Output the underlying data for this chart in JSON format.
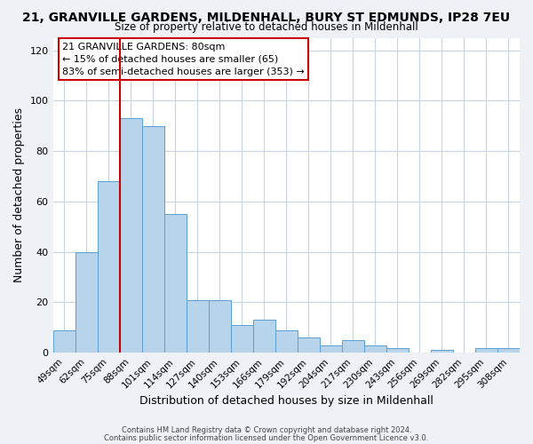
{
  "title": "21, GRANVILLE GARDENS, MILDENHALL, BURY ST EDMUNDS, IP28 7EU",
  "subtitle": "Size of property relative to detached houses in Mildenhall",
  "xlabel": "Distribution of detached houses by size in Mildenhall",
  "ylabel": "Number of detached properties",
  "categories": [
    "49sqm",
    "62sqm",
    "75sqm",
    "88sqm",
    "101sqm",
    "114sqm",
    "127sqm",
    "140sqm",
    "153sqm",
    "166sqm",
    "179sqm",
    "192sqm",
    "204sqm",
    "217sqm",
    "230sqm",
    "243sqm",
    "256sqm",
    "269sqm",
    "282sqm",
    "295sqm",
    "308sqm"
  ],
  "values": [
    9,
    40,
    68,
    93,
    90,
    55,
    21,
    21,
    11,
    13,
    9,
    6,
    3,
    5,
    3,
    2,
    0,
    1,
    0,
    2,
    2
  ],
  "bar_color": "#b8d4ea",
  "bar_edge_color": "#5a9fd4",
  "highlight_color": "#cc0000",
  "ylim": [
    0,
    125
  ],
  "yticks": [
    0,
    20,
    40,
    60,
    80,
    100,
    120
  ],
  "annotation_title": "21 GRANVILLE GARDENS: 80sqm",
  "annotation_line1": "← 15% of detached houses are smaller (65)",
  "annotation_line2": "83% of semi-detached houses are larger (353) →",
  "footer_line1": "Contains HM Land Registry data © Crown copyright and database right 2024.",
  "footer_line2": "Contains public sector information licensed under the Open Government Licence v3.0.",
  "background_color": "#eef2f7",
  "plot_background": "#ffffff",
  "grid_color": "#c8d4e0"
}
